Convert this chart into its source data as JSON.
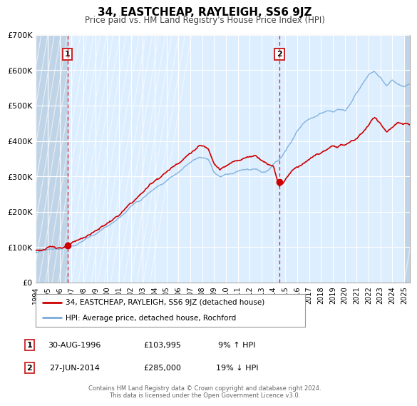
{
  "title": "34, EASTCHEAP, RAYLEIGH, SS6 9JZ",
  "subtitle": "Price paid vs. HM Land Registry's House Price Index (HPI)",
  "ylim": [
    0,
    700000
  ],
  "xlim_start": 1994.0,
  "xlim_end": 2025.5,
  "yticks": [
    0,
    100000,
    200000,
    300000,
    400000,
    500000,
    600000,
    700000
  ],
  "ytick_labels": [
    "£0",
    "£100K",
    "£200K",
    "£300K",
    "£400K",
    "£500K",
    "£600K",
    "£700K"
  ],
  "xticks": [
    1994,
    1995,
    1996,
    1997,
    1998,
    1999,
    2000,
    2001,
    2002,
    2003,
    2004,
    2005,
    2006,
    2007,
    2008,
    2009,
    2010,
    2011,
    2012,
    2013,
    2014,
    2015,
    2016,
    2017,
    2018,
    2019,
    2020,
    2021,
    2022,
    2023,
    2024,
    2025
  ],
  "marker1_x": 1996.66,
  "marker1_y": 103995,
  "marker2_x": 2014.49,
  "marker2_y": 285000,
  "sale1_date": "30-AUG-1996",
  "sale1_price": "£103,995",
  "sale1_hpi": "9% ↑ HPI",
  "sale2_date": "27-JUN-2014",
  "sale2_price": "£285,000",
  "sale2_hpi": "19% ↓ HPI",
  "line1_color": "#cc0000",
  "line2_color": "#7aabda",
  "bg_color": "#ddeeff",
  "hatch_color": "#c8ddf0",
  "legend_label1": "34, EASTCHEAP, RAYLEIGH, SS6 9JZ (detached house)",
  "legend_label2": "HPI: Average price, detached house, Rochford",
  "footer1": "Contains HM Land Registry data © Crown copyright and database right 2024.",
  "footer2": "This data is licensed under the Open Government Licence v3.0."
}
